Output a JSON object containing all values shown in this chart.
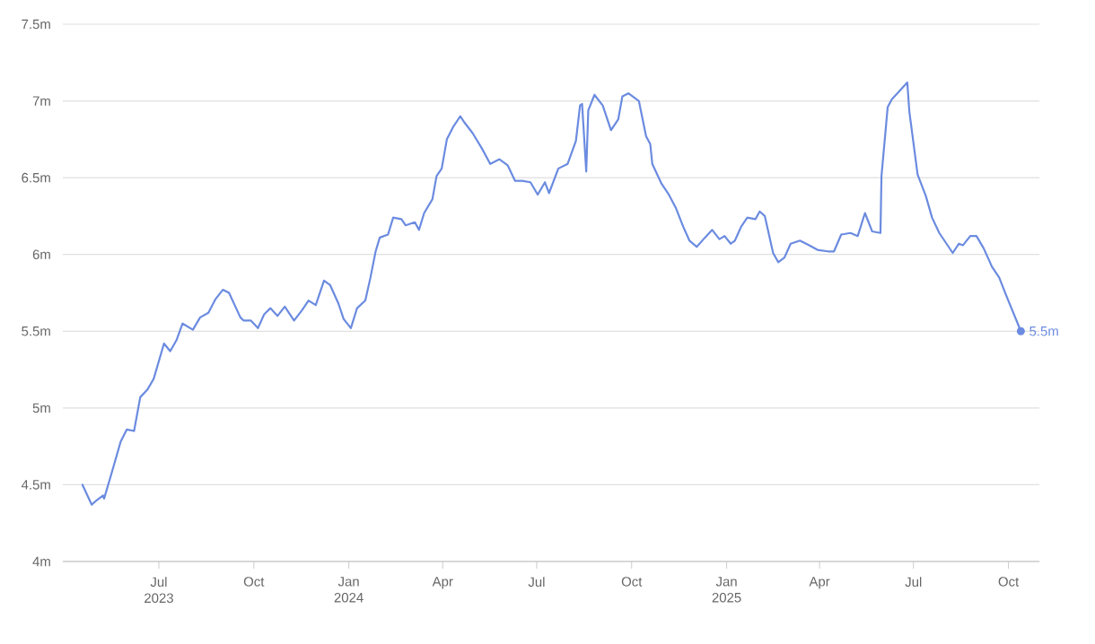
{
  "chart_data": {
    "type": "line",
    "grid": "y",
    "line_style": "solid",
    "xlim": [
      "2023-03-30",
      "2025-10-31"
    ],
    "xticks": [
      {
        "value": "2023-07-01",
        "label": "Jul 2023"
      },
      {
        "value": "2023-10-01",
        "label": "Oct"
      },
      {
        "value": "2024-01-01",
        "label": "Jan 2024"
      },
      {
        "value": "2024-04-01",
        "label": "Apr"
      },
      {
        "value": "2024-07-01",
        "label": "Jul"
      },
      {
        "value": "2024-10-01",
        "label": "Oct"
      },
      {
        "value": "2025-01-01",
        "label": "Jan 2025"
      },
      {
        "value": "2025-04-01",
        "label": "Apr"
      },
      {
        "value": "2025-07-01",
        "label": "Jul"
      },
      {
        "value": "2025-10-01",
        "label": "Oct"
      }
    ],
    "ylim": [
      4,
      7.5
    ],
    "yticks": [
      {
        "value": 4,
        "label": "4m"
      },
      {
        "value": 4.5,
        "label": "4.5m"
      },
      {
        "value": 5,
        "label": "5m"
      },
      {
        "value": 5.5,
        "label": "5.5m"
      },
      {
        "value": 6,
        "label": "6m"
      },
      {
        "value": 6.5,
        "label": "6.5m"
      },
      {
        "value": 7,
        "label": "7m"
      },
      {
        "value": 7.5,
        "label": "7.5m"
      }
    ],
    "x": [
      "2023-04-18",
      "2023-04-27",
      "2023-05-02",
      "2023-05-08",
      "2023-05-09",
      "2023-05-16",
      "2023-05-25",
      "2023-05-31",
      "2023-06-07",
      "2023-06-13",
      "2023-06-20",
      "2023-06-26",
      "2023-07-06",
      "2023-07-12",
      "2023-07-18",
      "2023-07-24",
      "2023-08-03",
      "2023-08-10",
      "2023-08-18",
      "2023-08-25",
      "2023-09-01",
      "2023-09-07",
      "2023-09-18",
      "2023-09-21",
      "2023-09-28",
      "2023-10-05",
      "2023-10-11",
      "2023-10-17",
      "2023-10-24",
      "2023-10-31",
      "2023-11-09",
      "2023-11-17",
      "2023-11-23",
      "2023-11-30",
      "2023-12-08",
      "2023-12-14",
      "2023-12-22",
      "2023-12-27",
      "2024-01-03",
      "2024-01-09",
      "2024-01-17",
      "2024-01-22",
      "2024-01-27",
      "2024-01-31",
      "2024-02-08",
      "2024-02-13",
      "2024-02-21",
      "2024-02-25",
      "2024-03-05",
      "2024-03-09",
      "2024-03-14",
      "2024-03-22",
      "2024-03-26",
      "2024-03-31",
      "2024-04-05",
      "2024-04-11",
      "2024-04-18",
      "2024-04-22",
      "2024-04-30",
      "2024-05-09",
      "2024-05-17",
      "2024-05-26",
      "2024-06-03",
      "2024-06-10",
      "2024-06-17",
      "2024-06-25",
      "2024-07-02",
      "2024-07-09",
      "2024-07-13",
      "2024-07-22",
      "2024-07-31",
      "2024-08-08",
      "2024-08-12",
      "2024-08-14",
      "2024-08-18",
      "2024-08-20",
      "2024-08-26",
      "2024-09-03",
      "2024-09-11",
      "2024-09-18",
      "2024-09-22",
      "2024-09-28",
      "2024-10-08",
      "2024-10-15",
      "2024-10-19",
      "2024-10-21",
      "2024-10-30",
      "2024-11-06",
      "2024-11-13",
      "2024-11-20",
      "2024-11-26",
      "2024-12-03",
      "2024-12-11",
      "2024-12-18",
      "2024-12-25",
      "2024-12-30",
      "2025-01-05",
      "2025-01-09",
      "2025-01-15",
      "2025-01-21",
      "2025-01-29",
      "2025-02-02",
      "2025-02-07",
      "2025-02-15",
      "2025-02-20",
      "2025-02-26",
      "2025-03-04",
      "2025-03-13",
      "2025-03-22",
      "2025-03-30",
      "2025-04-09",
      "2025-04-15",
      "2025-04-22",
      "2025-05-01",
      "2025-05-08",
      "2025-05-15",
      "2025-05-22",
      "2025-05-30",
      "2025-05-31",
      "2025-06-06",
      "2025-06-10",
      "2025-06-25",
      "2025-06-27",
      "2025-07-05",
      "2025-07-13",
      "2025-07-19",
      "2025-07-26",
      "2025-08-08",
      "2025-08-14",
      "2025-08-18",
      "2025-08-25",
      "2025-08-31",
      "2025-09-07",
      "2025-09-15",
      "2025-09-22",
      "2025-09-29",
      "2025-10-13"
    ],
    "series": [
      {
        "color": "#6b8be0",
        "values": [
          4.5,
          4.37,
          4.4,
          4.43,
          4.41,
          4.57,
          4.78,
          4.86,
          4.85,
          5.07,
          5.12,
          5.19,
          5.42,
          5.37,
          5.44,
          5.55,
          5.51,
          5.59,
          5.62,
          5.71,
          5.77,
          5.75,
          5.59,
          5.57,
          5.57,
          5.52,
          5.61,
          5.65,
          5.6,
          5.66,
          5.57,
          5.64,
          5.7,
          5.67,
          5.83,
          5.8,
          5.68,
          5.58,
          5.52,
          5.65,
          5.7,
          5.85,
          6.02,
          6.11,
          6.13,
          6.24,
          6.23,
          6.19,
          6.21,
          6.16,
          6.27,
          6.36,
          6.51,
          6.56,
          6.75,
          6.83,
          6.9,
          6.86,
          6.79,
          6.69,
          6.59,
          6.62,
          6.58,
          6.48,
          6.48,
          6.47,
          6.39,
          6.47,
          6.4,
          6.56,
          6.59,
          6.74,
          6.97,
          6.98,
          6.54,
          6.94,
          7.04,
          6.97,
          6.81,
          6.88,
          7.03,
          7.05,
          7.0,
          6.77,
          6.72,
          6.59,
          6.46,
          6.39,
          6.3,
          6.18,
          6.09,
          6.05,
          6.11,
          6.16,
          6.1,
          6.12,
          6.07,
          6.09,
          6.18,
          6.24,
          6.23,
          6.28,
          6.25,
          6.01,
          5.95,
          5.98,
          6.07,
          6.09,
          6.06,
          6.03,
          6.02,
          6.02,
          6.13,
          6.14,
          6.12,
          6.27,
          6.15,
          6.14,
          6.51,
          6.96,
          7.01,
          7.12,
          6.93,
          6.52,
          6.38,
          6.24,
          6.14,
          6.01,
          6.07,
          6.06,
          6.12,
          6.12,
          6.04,
          5.92,
          5.85,
          5.73,
          5.5
        ],
        "value_labels": [
          null,
          null,
          null,
          null,
          null,
          null,
          null,
          null,
          null,
          null,
          null,
          null,
          null,
          null,
          null,
          null,
          null,
          null,
          null,
          null,
          null,
          null,
          null,
          null,
          null,
          null,
          null,
          null,
          null,
          null,
          null,
          null,
          null,
          null,
          null,
          null,
          null,
          null,
          null,
          null,
          null,
          null,
          null,
          null,
          null,
          null,
          null,
          null,
          null,
          null,
          null,
          null,
          null,
          null,
          null,
          null,
          null,
          null,
          null,
          null,
          null,
          null,
          null,
          null,
          null,
          null,
          null,
          null,
          null,
          null,
          null,
          null,
          null,
          null,
          null,
          null,
          null,
          null,
          null,
          null,
          null,
          null,
          null,
          null,
          null,
          null,
          null,
          null,
          null,
          null,
          null,
          null,
          null,
          null,
          null,
          null,
          null,
          null,
          null,
          null,
          null,
          null,
          null,
          null,
          null,
          null,
          null,
          null,
          null,
          null,
          null,
          null,
          null,
          null,
          null,
          null,
          null,
          null,
          null,
          null,
          null,
          null,
          null,
          null,
          null,
          null,
          null,
          null,
          null,
          null,
          null,
          null,
          null,
          null,
          null,
          null,
          "5.5m"
        ]
      }
    ]
  }
}
